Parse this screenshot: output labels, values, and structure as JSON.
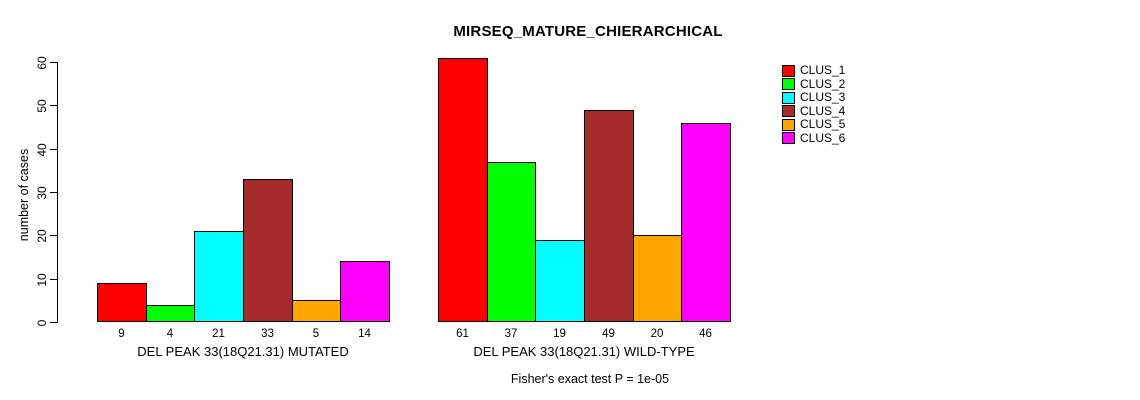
{
  "chart_data": {
    "type": "bar",
    "title": "MIRSEQ_MATURE_CHIERARCHICAL",
    "ylabel": "number of cases",
    "ylim": [
      0,
      61
    ],
    "yticks": [
      0,
      10,
      20,
      30,
      40,
      50,
      60
    ],
    "grid": false,
    "legend_position": "right",
    "categories": [
      "DEL PEAK 33(18Q21.31) MUTATED",
      "DEL PEAK 33(18Q21.31) WILD-TYPE"
    ],
    "series": [
      {
        "name": "CLUS_1",
        "color": "#FF0000",
        "values": [
          9,
          61
        ]
      },
      {
        "name": "CLUS_2",
        "color": "#00FF00",
        "values": [
          4,
          37
        ]
      },
      {
        "name": "CLUS_3",
        "color": "#00FFFF",
        "values": [
          21,
          19
        ]
      },
      {
        "name": "CLUS_4",
        "color": "#A52A2A",
        "values": [
          33,
          49
        ]
      },
      {
        "name": "CLUS_5",
        "color": "#FFA500",
        "values": [
          5,
          20
        ]
      },
      {
        "name": "CLUS_6",
        "color": "#FF00FF",
        "values": [
          14,
          46
        ]
      }
    ],
    "bar_value_labels_shown": true,
    "annotation": "Fisher's exact test P = 1e-05"
  }
}
